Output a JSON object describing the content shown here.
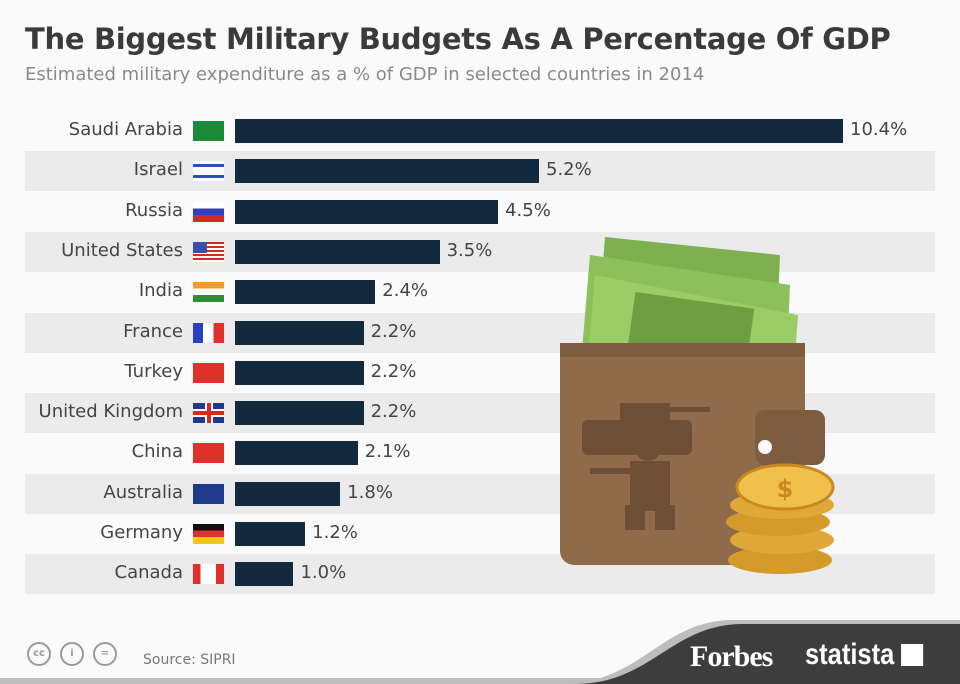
{
  "chart_data": {
    "type": "bar",
    "orientation": "horizontal",
    "title": "The Biggest Military Budgets As A Percentage Of GDP",
    "subtitle": "Estimated military expenditure as a % of GDP in selected countries in 2014",
    "categories": [
      "Saudi Arabia",
      "Israel",
      "Russia",
      "United States",
      "India",
      "France",
      "Turkey",
      "United Kingdom",
      "China",
      "Australia",
      "Germany",
      "Canada"
    ],
    "values": [
      10.4,
      5.2,
      4.5,
      3.5,
      2.4,
      2.2,
      2.2,
      2.2,
      2.1,
      1.8,
      1.2,
      1.0
    ],
    "data_labels": [
      "10.4%",
      "5.2%",
      "4.5%",
      "3.5%",
      "2.4%",
      "2.2%",
      "2.2%",
      "2.2%",
      "2.1%",
      "1.8%",
      "1.2%",
      "1.0%"
    ],
    "xlim": [
      0,
      10.4
    ],
    "grid": false,
    "bar_color": "#132a3e",
    "stripe_color": "#ebebeb"
  },
  "footer": {
    "source": "Source: SIPRI",
    "brand1": "Forbes",
    "brand2": "statista",
    "cc_icons": [
      "cc-icon",
      "by-icon",
      "nd-icon"
    ]
  }
}
